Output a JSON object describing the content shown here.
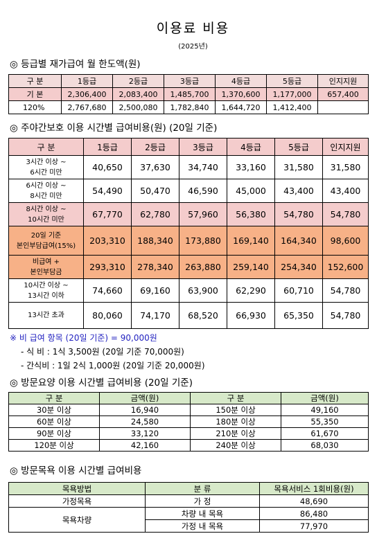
{
  "title": "이용료 비용",
  "year": "(2025년)",
  "s1": {
    "heading": "◎ 등급별 재가급여 월 한도액(원)",
    "headers": [
      "구 분",
      "1등급",
      "2등급",
      "3등급",
      "4등급",
      "5등급",
      "인지지원"
    ],
    "rows": [
      [
        "기 본",
        "2,306,400",
        "2,083,400",
        "1,485,700",
        "1,370,600",
        "1,177,000",
        "657,400"
      ],
      [
        "120%",
        "2,767,680",
        "2,500,080",
        "1,782,840",
        "1,644,720",
        "1,412,400",
        ""
      ]
    ]
  },
  "s2": {
    "heading": "◎ 주야간보호 이용 시간별 급여비용(원) (20일 기준)",
    "headers": [
      "구 분",
      "1등급",
      "2등급",
      "3등급",
      "4등급",
      "5등급",
      "인지지원"
    ],
    "rows": [
      [
        "3시간 이상 ~",
        "6시간 미만",
        "40,650",
        "37,630",
        "34,740",
        "33,160",
        "31,580",
        "31,580"
      ],
      [
        "6시간 이상 ~",
        "8시간 미만",
        "54,490",
        "50,470",
        "46,590",
        "45,000",
        "43,400",
        "43,400"
      ],
      [
        "8시간 이상 ~",
        "10시간 미만",
        "67,770",
        "62,780",
        "57,960",
        "56,380",
        "54,780",
        "54,780"
      ],
      [
        "20일 기준",
        "본인부담급여(15%)",
        "203,310",
        "188,340",
        "173,880",
        "169,140",
        "164,340",
        "98,600"
      ],
      [
        "비급여 +",
        "본인부담금",
        "293,310",
        "278,340",
        "263,880",
        "259,140",
        "254,340",
        "152,600"
      ],
      [
        "10시간 이상 ~",
        "13시간 이하",
        "74,660",
        "69,160",
        "63,900",
        "62,290",
        "60,710",
        "54,780"
      ],
      [
        "13시간 초과",
        "",
        "80,060",
        "74,170",
        "68,520",
        "66,930",
        "65,350",
        "54,780"
      ]
    ]
  },
  "notes": {
    "n1": "※ 비 급여 항목 (20일 기준) = 90,000원",
    "n2": "- 식  비 : 1식 3,500원 (20일 기준 70,000원)",
    "n3": "- 간식비 : 1일 2식 1,000원 (20일 기준 20,000원)"
  },
  "s3": {
    "heading": "◎ 방문요양 이용 시간별 급여비용 (20일 기준)",
    "headers": [
      "구 분",
      "금액(원)",
      "구 분",
      "금액(원)"
    ],
    "rows": [
      [
        "30분 이상",
        "16,940",
        "150분 이상",
        "49,160"
      ],
      [
        "60분 이상",
        "24,580",
        "180분 이상",
        "55,350"
      ],
      [
        "90분 이상",
        "33,120",
        "210분 이상",
        "61,670"
      ],
      [
        "120분 이상",
        "42,160",
        "240분 이상",
        "68,030"
      ]
    ]
  },
  "s4": {
    "heading": "◎ 방문목욕 이용 시간별 급여비용",
    "headers": [
      "목욕방법",
      "분 류",
      "목욕서비스 1회비용(원)"
    ],
    "rows": [
      [
        "가정목욕",
        "가 정",
        "48,690"
      ],
      [
        "목욕차량",
        "차량 내 목욕",
        "86,480"
      ],
      [
        "",
        "가정 내 목욕",
        "77,970"
      ]
    ]
  }
}
